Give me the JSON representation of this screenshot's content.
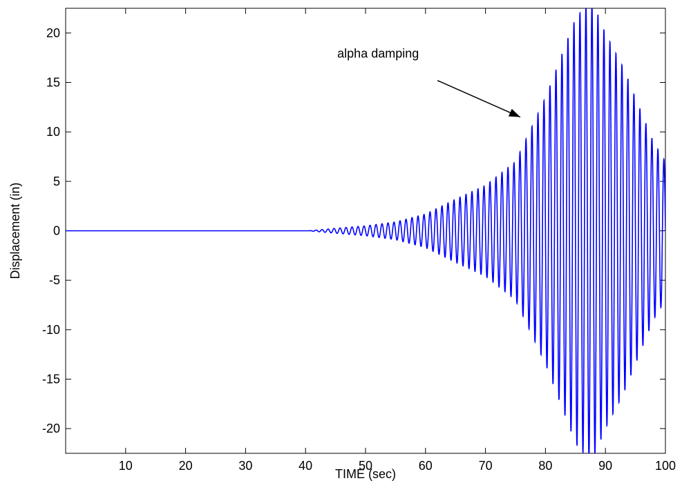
{
  "chart_data": {
    "type": "line",
    "title": "",
    "xlabel": "TIME (sec)",
    "ylabel": "Displacement (in)",
    "xlim": [
      0,
      100
    ],
    "ylim": [
      -22.5,
      22.5
    ],
    "xticks": [
      10,
      20,
      30,
      40,
      50,
      60,
      70,
      80,
      90,
      100
    ],
    "yticks": [
      20,
      15,
      10,
      5,
      0,
      -5,
      -10,
      -15,
      -20
    ],
    "grid": false,
    "legend": "none",
    "series": [
      {
        "color": "#0000ff",
        "signal": "sinusoid",
        "period_sec": 1.0,
        "zero_until_sec": 40.5,
        "envelope": [
          {
            "t": 40.5,
            "amp": 0.0
          },
          {
            "t": 45,
            "amp": 0.25
          },
          {
            "t": 50,
            "amp": 0.5
          },
          {
            "t": 55,
            "amp": 0.9
          },
          {
            "t": 60,
            "amp": 1.7
          },
          {
            "t": 65,
            "amp": 3.2
          },
          {
            "t": 70,
            "amp": 4.6
          },
          {
            "t": 75,
            "amp": 7.0
          },
          {
            "t": 80,
            "amp": 13.5
          },
          {
            "t": 85,
            "amp": 21.5
          },
          {
            "t": 87,
            "amp": 23.0
          },
          {
            "t": 88,
            "amp": 23.0
          },
          {
            "t": 90,
            "amp": 20.0
          },
          {
            "t": 93,
            "amp": 16.5
          },
          {
            "t": 95,
            "amp": 13.5
          },
          {
            "t": 98,
            "amp": 9.0
          },
          {
            "t": 100,
            "amp": 7.0
          }
        ]
      }
    ],
    "annotations": [
      {
        "text": "alpha damping",
        "arrow_from": {
          "x": 62,
          "y": 15.2
        },
        "arrow_to": {
          "x": 75.8,
          "y": 11.5
        }
      }
    ]
  }
}
